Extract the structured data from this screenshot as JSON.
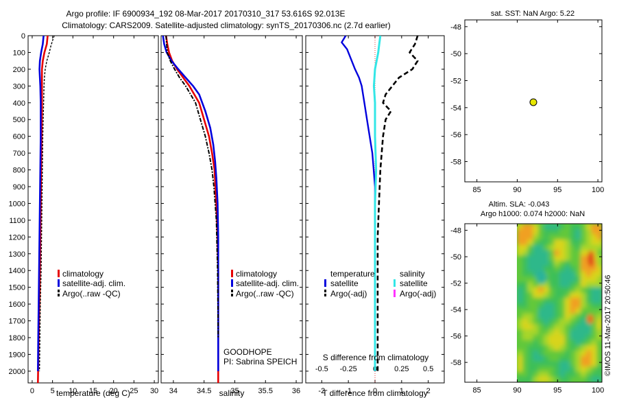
{
  "header": {
    "line1": "Argo profile: IF 6900934_192 08-Mar-2017 20170310_317 53.616S 92.013E",
    "line2": "Climatology: CARS2009. Satellite-adjusted climatology: synTS_20170306.nc (2.7d earlier)"
  },
  "colors": {
    "climatology": "#e60000",
    "satellite": "#0000dd",
    "argo": "#000000",
    "sal_satellite": "#33e6e6",
    "sal_argo": "#ff33ff",
    "marker_fill": "#e6e600"
  },
  "chart_data": [
    {
      "type": "line",
      "name": "temperature-profile",
      "xlabel": "temperature (deg C)",
      "ylabel": "",
      "xlim": [
        -1,
        31
      ],
      "ylim": [
        2070,
        0
      ],
      "xticks": [
        0,
        5,
        10,
        15,
        20,
        25,
        30
      ],
      "yticks": [
        0,
        100,
        200,
        300,
        400,
        500,
        600,
        700,
        800,
        900,
        1000,
        1100,
        1200,
        1300,
        1400,
        1500,
        1600,
        1700,
        1800,
        1900,
        2000
      ],
      "legend": [
        "climatology",
        "satellite-adj. clim.",
        "Argo(..raw -QC)"
      ],
      "series": [
        {
          "name": "climatology",
          "x": [
            3.8,
            3.6,
            3.0,
            2.6,
            2.4,
            2.4,
            2.4,
            2.4,
            2.3,
            2.2,
            2.1,
            2.0,
            1.9,
            1.8,
            1.6,
            1.5,
            1.4
          ],
          "y": [
            0,
            50,
            100,
            150,
            200,
            250,
            300,
            400,
            600,
            800,
            1000,
            1200,
            1400,
            1600,
            1800,
            1950,
            2070
          ]
        },
        {
          "name": "satellite-adj. clim.",
          "x": [
            2.8,
            2.6,
            2.2,
            1.9,
            1.8,
            1.9,
            2.0,
            2.1,
            2.1,
            2.0,
            1.9,
            1.8,
            1.7,
            1.6,
            1.5,
            1.4
          ],
          "y": [
            0,
            50,
            100,
            150,
            200,
            250,
            300,
            400,
            600,
            800,
            1000,
            1200,
            1400,
            1600,
            1800,
            2000
          ]
        },
        {
          "name": "Argo(..raw -QC)",
          "x": [
            5.4,
            5.0,
            4.6,
            4.2,
            3.6,
            3.2,
            3.0,
            2.9,
            2.8,
            2.7,
            2.6,
            2.5,
            2.4,
            2.3,
            2.2,
            2.1,
            2.0,
            1.9,
            1.8
          ],
          "y": [
            0,
            30,
            60,
            100,
            150,
            200,
            250,
            300,
            400,
            500,
            600,
            800,
            1000,
            1200,
            1400,
            1500,
            1600,
            1800,
            2000
          ]
        }
      ]
    },
    {
      "type": "line",
      "name": "salinity-profile",
      "xlabel": "salinity",
      "ylabel": "",
      "xlim": [
        33.8,
        36.1
      ],
      "ylim": [
        2070,
        0
      ],
      "xticks": [
        34,
        34.5,
        35,
        35.5,
        36
      ],
      "legend": [
        "climatology",
        "satellite-adj. clim.",
        "Argo(..raw -QC)"
      ],
      "annotation_lines": [
        "GOODHOPE",
        "PI: Sabrina SPEICH"
      ],
      "series": [
        {
          "name": "climatology",
          "x": [
            33.88,
            33.9,
            33.93,
            33.98,
            34.06,
            34.16,
            34.26,
            34.34,
            34.42,
            34.5,
            34.58,
            34.63,
            34.67,
            34.7,
            34.72,
            34.73,
            34.73,
            34.73,
            34.73
          ],
          "y": [
            0,
            50,
            100,
            150,
            200,
            250,
            300,
            350,
            400,
            500,
            600,
            700,
            800,
            1000,
            1200,
            1400,
            1600,
            1800,
            2070
          ]
        },
        {
          "name": "satellite-adj. clim.",
          "x": [
            33.83,
            33.85,
            33.89,
            33.97,
            34.08,
            34.2,
            34.32,
            34.42,
            34.52,
            34.6,
            34.65,
            34.68,
            34.7,
            34.72,
            34.73,
            34.73,
            34.73,
            34.73
          ],
          "y": [
            0,
            50,
            100,
            150,
            200,
            250,
            300,
            350,
            450,
            550,
            650,
            750,
            850,
            1000,
            1200,
            1400,
            1700,
            2000
          ]
        },
        {
          "name": "Argo(..raw -QC)",
          "x": [
            33.88,
            33.89,
            33.9,
            33.95,
            34.02,
            34.1,
            34.2,
            34.28,
            34.36,
            34.44,
            34.52,
            34.58,
            34.63,
            34.66,
            34.7,
            34.72,
            34.73
          ],
          "y": [
            0,
            50,
            100,
            150,
            200,
            250,
            300,
            350,
            400,
            500,
            600,
            700,
            800,
            900,
            1100,
            1400,
            1800
          ]
        }
      ]
    },
    {
      "type": "line",
      "name": "difference-profile",
      "xlabel": "T difference from climatology",
      "x2label": "S difference from climatology",
      "xlim": [
        -2.6,
        2.6
      ],
      "x2lim": [
        -0.65,
        0.65
      ],
      "ylim": [
        2070,
        0
      ],
      "xticks": [
        -2,
        -1,
        0,
        1,
        2
      ],
      "x2ticks": [
        -0.5,
        -0.25,
        0,
        0.25,
        0.5
      ],
      "x2ticklabels": [
        "-0.5",
        "-0.25",
        "0",
        "0.25",
        "0.5"
      ],
      "legend_temperature_title": "temperature",
      "legend_salinity_title": "salinity",
      "legend_temperature": [
        "satellite",
        "Argo(-adj)"
      ],
      "legend_salinity": [
        "satellite",
        "Argo(-adj)"
      ],
      "series": [
        {
          "name": "temperature satellite",
          "x": [
            -1.1,
            -1.25,
            -1.05,
            -0.95,
            -0.75,
            -0.6,
            -0.5,
            -0.4,
            -0.3,
            -0.2,
            -0.1,
            -0.05,
            0,
            0,
            0,
            0,
            0
          ],
          "y": [
            0,
            40,
            80,
            120,
            200,
            250,
            300,
            400,
            500,
            600,
            700,
            800,
            900,
            1100,
            1400,
            1700,
            2000
          ]
        },
        {
          "name": "temperature Argo(-adj)",
          "x": [
            1.6,
            1.5,
            1.3,
            1.6,
            1.4,
            0.9,
            0.4,
            0.3,
            0.6,
            0.4,
            0.3,
            0.2,
            0.15,
            0.1,
            0.1,
            0.1
          ],
          "y": [
            0,
            50,
            100,
            150,
            200,
            250,
            350,
            400,
            450,
            500,
            600,
            800,
            1000,
            1200,
            1600,
            2000
          ]
        },
        {
          "name": "salinity satellite",
          "x": [
            0.05,
            0.04,
            0.03,
            0.0,
            -0.01,
            0.0,
            0.0,
            0.01,
            0.0,
            0.0,
            0.0,
            0.0
          ],
          "y": [
            0,
            50,
            100,
            200,
            300,
            400,
            600,
            800,
            1000,
            1400,
            1700,
            2000
          ]
        }
      ]
    },
    {
      "type": "scatter",
      "name": "location-map",
      "title": "sat. SST: NaN Argo: 5.22",
      "xlim": [
        83.5,
        100.5
      ],
      "ylim": [
        -59.5,
        -47.5
      ],
      "xticks": [
        85,
        90,
        95,
        100
      ],
      "yticks": [
        -48,
        -50,
        -52,
        -54,
        -56,
        -58
      ],
      "points": [
        {
          "x": 92.0,
          "y": -53.6
        }
      ]
    },
    {
      "type": "heatmap",
      "name": "altimetry-map",
      "title_lines": [
        "Altim. SLA: -0.043",
        "Argo h1000: 0.074 h2000: NaN"
      ],
      "xlim": [
        83.5,
        100.5
      ],
      "ylim": [
        -59.5,
        -47.5
      ],
      "xticks": [
        85,
        90,
        95,
        100
      ],
      "yticks": [
        -48,
        -50,
        -52,
        -54,
        -56,
        -58
      ],
      "data_extent_lon": [
        90,
        100
      ],
      "data_extent_lat": [
        -59.5,
        -47.5
      ]
    }
  ],
  "watermark": "©IMOS 11-Mar-2017 20:50:46"
}
